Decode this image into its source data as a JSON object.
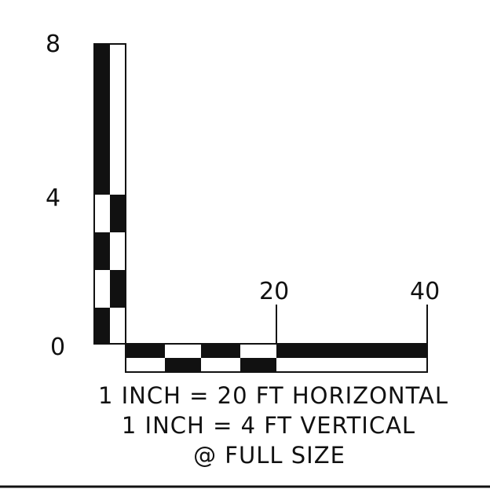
{
  "vertical_scale": {
    "tick_labels": [
      "8",
      "4",
      "0"
    ],
    "max_value": 8,
    "unit": "FT"
  },
  "horizontal_scale": {
    "tick_labels": [
      "20",
      "40"
    ],
    "max_value": 40,
    "unit": "FT"
  },
  "notes": {
    "line1": "1 INCH = 20 FT HORIZONTAL",
    "line2": "1 INCH = 4 FT VERTICAL",
    "line3": "@ FULL SIZE"
  },
  "colors": {
    "ink": "#111111",
    "paper": "#ffffff"
  }
}
